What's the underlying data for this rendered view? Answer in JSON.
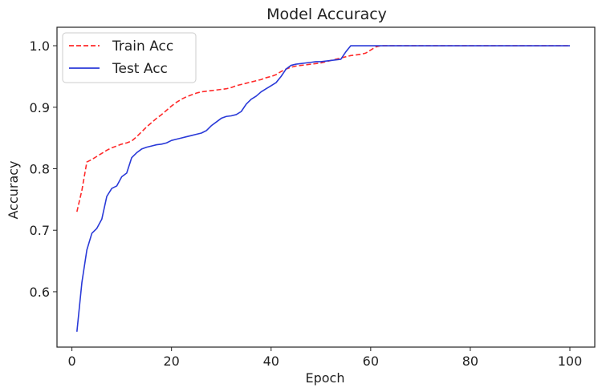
{
  "chart_data": {
    "type": "line",
    "title": "Model Accuracy",
    "xlabel": "Epoch",
    "ylabel": "Accuracy",
    "xlim": [
      -3,
      105
    ],
    "ylim": [
      0.51,
      1.03
    ],
    "xticks": [
      0,
      20,
      40,
      60,
      80,
      100
    ],
    "yticks": [
      0.6,
      0.7,
      0.8,
      0.9,
      1.0
    ],
    "xtick_labels": [
      "0",
      "20",
      "40",
      "60",
      "80",
      "100"
    ],
    "ytick_labels": [
      "0.6",
      "0.7",
      "0.8",
      "0.9",
      "1.0"
    ],
    "grid": false,
    "legend_position": "upper-left",
    "series": [
      {
        "name": "Train Acc",
        "color": "#ff2a2a",
        "style": "dashed",
        "x": [
          1,
          2,
          3,
          4,
          5,
          6,
          7,
          8,
          9,
          10,
          11,
          12,
          13,
          14,
          15,
          16,
          17,
          18,
          19,
          20,
          21,
          22,
          23,
          24,
          25,
          26,
          27,
          28,
          29,
          30,
          31,
          32,
          33,
          34,
          35,
          36,
          37,
          38,
          39,
          40,
          41,
          42,
          43,
          44,
          45,
          46,
          47,
          48,
          49,
          50,
          51,
          52,
          53,
          54,
          55,
          56,
          57,
          58,
          59,
          60,
          61,
          62,
          65,
          70,
          80,
          90,
          100
        ],
        "y": [
          0.73,
          0.765,
          0.811,
          0.815,
          0.82,
          0.825,
          0.83,
          0.834,
          0.837,
          0.84,
          0.842,
          0.845,
          0.852,
          0.86,
          0.868,
          0.875,
          0.882,
          0.888,
          0.895,
          0.902,
          0.908,
          0.913,
          0.917,
          0.92,
          0.923,
          0.925,
          0.926,
          0.927,
          0.928,
          0.929,
          0.93,
          0.932,
          0.935,
          0.937,
          0.939,
          0.941,
          0.943,
          0.945,
          0.948,
          0.95,
          0.953,
          0.958,
          0.962,
          0.965,
          0.967,
          0.968,
          0.969,
          0.97,
          0.971,
          0.972,
          0.974,
          0.976,
          0.978,
          0.98,
          0.982,
          0.984,
          0.985,
          0.986,
          0.988,
          0.993,
          0.998,
          1.0,
          1.0,
          1.0,
          1.0,
          1.0,
          1.0
        ]
      },
      {
        "name": "Test Acc",
        "color": "#2a3ad8",
        "style": "solid",
        "x": [
          1,
          2,
          3,
          4,
          5,
          6,
          7,
          8,
          9,
          10,
          11,
          12,
          13,
          14,
          15,
          16,
          17,
          18,
          19,
          20,
          21,
          22,
          23,
          24,
          25,
          26,
          27,
          28,
          29,
          30,
          31,
          32,
          33,
          34,
          35,
          36,
          37,
          38,
          39,
          40,
          41,
          42,
          43,
          44,
          45,
          46,
          47,
          48,
          49,
          50,
          51,
          52,
          53,
          54,
          55,
          56,
          57,
          58,
          60,
          65,
          70,
          80,
          90,
          100
        ],
        "y": [
          0.535,
          0.615,
          0.668,
          0.695,
          0.703,
          0.718,
          0.755,
          0.768,
          0.772,
          0.787,
          0.793,
          0.818,
          0.826,
          0.832,
          0.835,
          0.837,
          0.839,
          0.84,
          0.842,
          0.846,
          0.848,
          0.85,
          0.852,
          0.854,
          0.856,
          0.858,
          0.862,
          0.87,
          0.876,
          0.882,
          0.885,
          0.886,
          0.888,
          0.893,
          0.905,
          0.913,
          0.918,
          0.925,
          0.93,
          0.935,
          0.94,
          0.95,
          0.962,
          0.968,
          0.97,
          0.971,
          0.972,
          0.973,
          0.974,
          0.974,
          0.975,
          0.976,
          0.977,
          0.978,
          0.99,
          1.0,
          1.0,
          1.0,
          1.0,
          1.0,
          1.0,
          1.0,
          1.0,
          1.0
        ]
      }
    ]
  }
}
